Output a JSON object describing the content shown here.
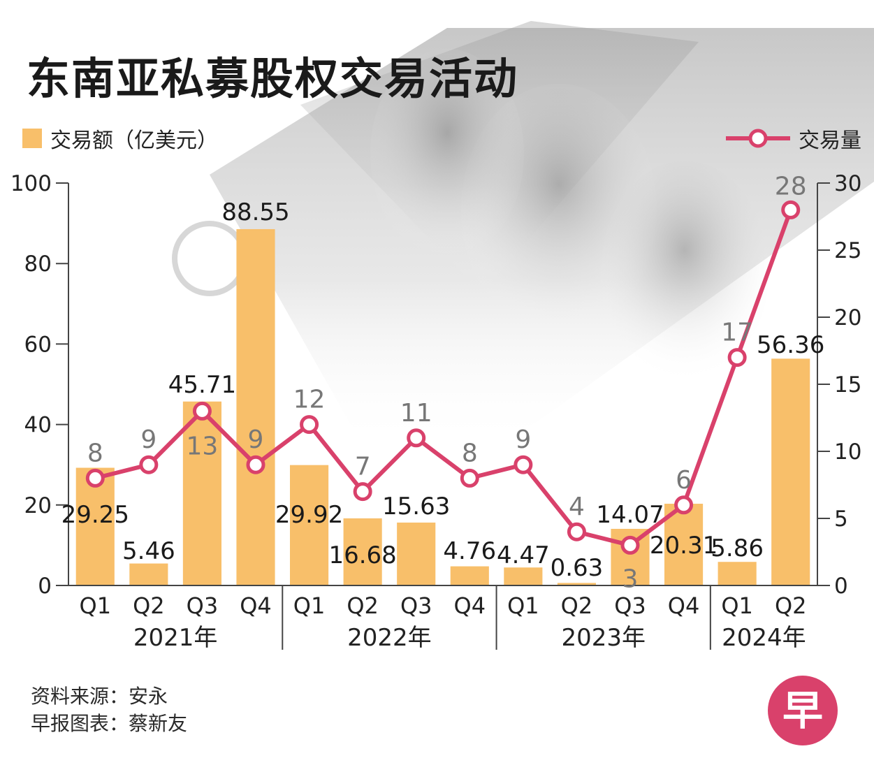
{
  "title": "东南亚私募股权交易活动",
  "source": "资料来源：安永",
  "credit": "早报图表：蔡新友",
  "logo_char": "早",
  "colors": {
    "bar": "#f8bf6a",
    "line": "#d9416b",
    "background_art": "#bdbdbd",
    "logo": "#d9416b"
  },
  "chart_data": {
    "type": "bar",
    "categories": [
      "Q1",
      "Q2",
      "Q3",
      "Q4",
      "Q1",
      "Q2",
      "Q3",
      "Q4",
      "Q1",
      "Q2",
      "Q3",
      "Q4",
      "Q1",
      "Q2"
    ],
    "year_groups": [
      {
        "label": "2021年",
        "count": 4
      },
      {
        "label": "2022年",
        "count": 4
      },
      {
        "label": "2023年",
        "count": 4
      },
      {
        "label": "2024年",
        "count": 2
      }
    ],
    "series": [
      {
        "name": "交易额（亿美元）",
        "type": "bar",
        "axis": "left",
        "values": [
          29.25,
          5.46,
          45.71,
          88.55,
          29.92,
          16.68,
          15.63,
          4.76,
          4.47,
          0.63,
          14.07,
          20.31,
          5.86,
          56.36
        ],
        "labels": [
          "29.25",
          "5.46",
          "45.71",
          "88.55",
          "29.92",
          "16.68",
          "15.63",
          "4.76",
          "4.47",
          "0.63",
          "14.07",
          "20.31",
          "5.86",
          "56.36"
        ]
      },
      {
        "name": "交易量",
        "type": "line",
        "axis": "right",
        "values": [
          8,
          9,
          13,
          9,
          12,
          7,
          11,
          8,
          9,
          4,
          3,
          6,
          17,
          28
        ],
        "labels": [
          "8",
          "9",
          "13",
          "9",
          "12",
          "7",
          "11",
          "8",
          "9",
          "4",
          "3",
          "6",
          "17",
          "28"
        ]
      }
    ],
    "y_left": {
      "min": 0,
      "max": 100,
      "ticks": [
        0,
        20,
        40,
        60,
        80,
        100
      ],
      "tick_labels": [
        "0",
        "20",
        "40",
        "60",
        "80",
        "100"
      ]
    },
    "y_right": {
      "min": 0,
      "max": 30,
      "ticks": [
        0,
        5,
        10,
        15,
        20,
        25,
        30
      ],
      "tick_labels": [
        "0",
        "5",
        "10",
        "15",
        "20",
        "25",
        "30"
      ]
    },
    "legend": {
      "bar": "交易额（亿美元）",
      "line": "交易量"
    },
    "grid": false
  }
}
